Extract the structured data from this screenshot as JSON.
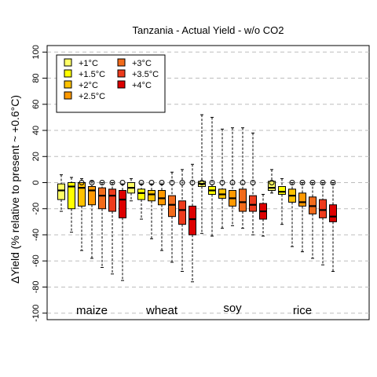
{
  "chart_data": {
    "type": "box",
    "title": "Tanzania - Actual Yield - w/o CO2",
    "ylabel": "ΔYield (% relative to present ~ +0.6°C)",
    "xlabel": "",
    "ylim": [
      -105,
      105
    ],
    "yticks": [
      -100,
      -80,
      -60,
      -40,
      -20,
      0,
      20,
      40,
      60,
      80,
      100
    ],
    "grid": "horizontal dashed",
    "legend_position": "top-left",
    "categories": [
      "maize",
      "wheat",
      "soy",
      "rice"
    ],
    "series": [
      {
        "name": "+1°C",
        "color": "#ffff66"
      },
      {
        "name": "+1.5°C",
        "color": "#ffff00"
      },
      {
        "name": "+2°C",
        "color": "#ffc200"
      },
      {
        "name": "+2.5°C",
        "color": "#ff9900"
      },
      {
        "name": "+3°C",
        "color": "#f26b1b"
      },
      {
        "name": "+3.5°C",
        "color": "#ee3b1c"
      },
      {
        "name": "+4°C",
        "color": "#dd0000"
      }
    ],
    "boxes": [
      {
        "crop": "maize",
        "level": 0,
        "min": -22,
        "q1": -13,
        "median": -6,
        "q3": -1,
        "max": 6,
        "outliers": []
      },
      {
        "crop": "maize",
        "level": 1,
        "min": -38,
        "q1": -20,
        "median": -3,
        "q3": 0,
        "max": 4,
        "outliers": []
      },
      {
        "crop": "maize",
        "level": 2,
        "min": -52,
        "q1": -18,
        "median": -4,
        "q3": 0,
        "max": 3,
        "outliers": [
          0
        ]
      },
      {
        "crop": "maize",
        "level": 3,
        "min": -58,
        "q1": -17,
        "median": -6,
        "q3": -3,
        "max": 1,
        "outliers": [
          0
        ]
      },
      {
        "crop": "maize",
        "level": 4,
        "min": -65,
        "q1": -20,
        "median": -10,
        "q3": -4,
        "max": 0,
        "outliers": [
          0
        ]
      },
      {
        "crop": "maize",
        "level": 5,
        "min": -70,
        "q1": -22,
        "median": -10,
        "q3": -5,
        "max": 0,
        "outliers": [
          0
        ]
      },
      {
        "crop": "maize",
        "level": 6,
        "min": -75,
        "q1": -27,
        "median": -13,
        "q3": -6,
        "max": -1,
        "outliers": [
          0
        ]
      },
      {
        "crop": "wheat",
        "level": 0,
        "min": -14,
        "q1": -8,
        "median": -4,
        "q3": 0,
        "max": 3,
        "outliers": []
      },
      {
        "crop": "wheat",
        "level": 1,
        "min": -28,
        "q1": -13,
        "median": -8,
        "q3": -5,
        "max": -1,
        "outliers": [
          0
        ]
      },
      {
        "crop": "wheat",
        "level": 2,
        "min": -43,
        "q1": -14,
        "median": -9,
        "q3": -6,
        "max": -1,
        "outliers": [
          0
        ]
      },
      {
        "crop": "wheat",
        "level": 3,
        "min": -52,
        "q1": -17,
        "median": -12,
        "q3": -6,
        "max": -1,
        "outliers": [
          0
        ]
      },
      {
        "crop": "wheat",
        "level": 4,
        "min": -61,
        "q1": -26,
        "median": -17,
        "q3": -10,
        "max": 8,
        "outliers": [
          0
        ]
      },
      {
        "crop": "wheat",
        "level": 5,
        "min": -68,
        "q1": -32,
        "median": -21,
        "q3": -14,
        "max": 10,
        "outliers": [
          0
        ]
      },
      {
        "crop": "wheat",
        "level": 6,
        "min": -76,
        "q1": -40,
        "median": -28,
        "q3": -18,
        "max": 14,
        "outliers": [
          0
        ]
      },
      {
        "crop": "soy",
        "level": 0,
        "min": -39,
        "q1": -3,
        "median": -1,
        "q3": 1,
        "max": 52,
        "outliers": [
          0
        ]
      },
      {
        "crop": "soy",
        "level": 1,
        "min": -41,
        "q1": -9,
        "median": -6,
        "q3": -3,
        "max": 50,
        "outliers": [
          0
        ]
      },
      {
        "crop": "soy",
        "level": 2,
        "min": -35,
        "q1": -12,
        "median": -9,
        "q3": -5,
        "max": 41,
        "outliers": [
          0
        ]
      },
      {
        "crop": "soy",
        "level": 3,
        "min": -33,
        "q1": -18,
        "median": -12,
        "q3": -6,
        "max": 42,
        "outliers": [
          0
        ]
      },
      {
        "crop": "soy",
        "level": 4,
        "min": -35,
        "q1": -22,
        "median": -15,
        "q3": -5,
        "max": 42,
        "outliers": [
          0
        ]
      },
      {
        "crop": "soy",
        "level": 5,
        "min": -40,
        "q1": -22,
        "median": -17,
        "q3": -10,
        "max": 38,
        "outliers": [
          0
        ]
      },
      {
        "crop": "soy",
        "level": 6,
        "min": -41,
        "q1": -28,
        "median": -22,
        "q3": -16,
        "max": -9,
        "outliers": []
      },
      {
        "crop": "rice",
        "level": 0,
        "min": -8,
        "q1": -6,
        "median": -4,
        "q3": 1,
        "max": 10,
        "outliers": [
          0
        ]
      },
      {
        "crop": "rice",
        "level": 1,
        "min": -32,
        "q1": -9,
        "median": -7,
        "q3": -3,
        "max": 3,
        "outliers": []
      },
      {
        "crop": "rice",
        "level": 2,
        "min": -49,
        "q1": -15,
        "median": -10,
        "q3": -5,
        "max": 0,
        "outliers": [
          0
        ]
      },
      {
        "crop": "rice",
        "level": 3,
        "min": -53,
        "q1": -18,
        "median": -15,
        "q3": -8,
        "max": 0,
        "outliers": [
          0
        ]
      },
      {
        "crop": "rice",
        "level": 4,
        "min": -58,
        "q1": -24,
        "median": -18,
        "q3": -11,
        "max": 0,
        "outliers": [
          0
        ]
      },
      {
        "crop": "rice",
        "level": 5,
        "min": -63,
        "q1": -27,
        "median": -21,
        "q3": -13,
        "max": 0,
        "outliers": [
          0
        ]
      },
      {
        "crop": "rice",
        "level": 6,
        "min": -68,
        "q1": -30,
        "median": -26,
        "q3": -17,
        "max": 0,
        "outliers": [
          0
        ]
      }
    ]
  }
}
